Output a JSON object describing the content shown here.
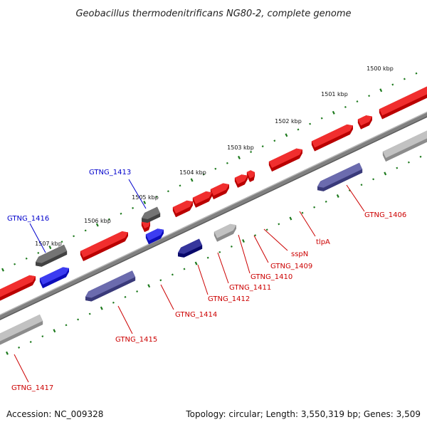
{
  "title": "Geobacillus thermodenitrificans NG80-2, complete genome",
  "footer": {
    "accession": "Accession: NC_009328",
    "summary": "Topology: circular; Length: 3,550,319 bp; Genes: 3,509"
  },
  "colors": {
    "backbone": "#808080",
    "tick_green": "#1d7a1d",
    "label_red": "#cc0000",
    "label_blue": "#0000cc",
    "gene_red": "#ee0000",
    "gene_blue": "#1111ee",
    "gene_navy": "#0a0a88",
    "gene_slate": "#4a4a9c",
    "gene_gray": "#555555",
    "gene_lightgray": "#b4b4b4"
  },
  "position_ruler": {
    "unit": "kbp",
    "ticks": [
      "1500 kbp",
      "1501 kbp",
      "1502 kbp",
      "1503 kbp",
      "1504 kbp",
      "1505 kbp",
      "1506 kbp",
      "1507 kbp"
    ]
  },
  "gene_labels": [
    {
      "name": "GTNG_1406",
      "color": "red"
    },
    {
      "name": "tlpA",
      "color": "red"
    },
    {
      "name": "sspN",
      "color": "red"
    },
    {
      "name": "GTNG_1409",
      "color": "red"
    },
    {
      "name": "GTNG_1410",
      "color": "red"
    },
    {
      "name": "GTNG_1411",
      "color": "red"
    },
    {
      "name": "GTNG_1412",
      "color": "red"
    },
    {
      "name": "GTNG_1413",
      "color": "blue"
    },
    {
      "name": "GTNG_1414",
      "color": "red"
    },
    {
      "name": "GTNG_1415",
      "color": "red"
    },
    {
      "name": "GTNG_1416",
      "color": "blue"
    },
    {
      "name": "GTNG_1417",
      "color": "red"
    }
  ]
}
